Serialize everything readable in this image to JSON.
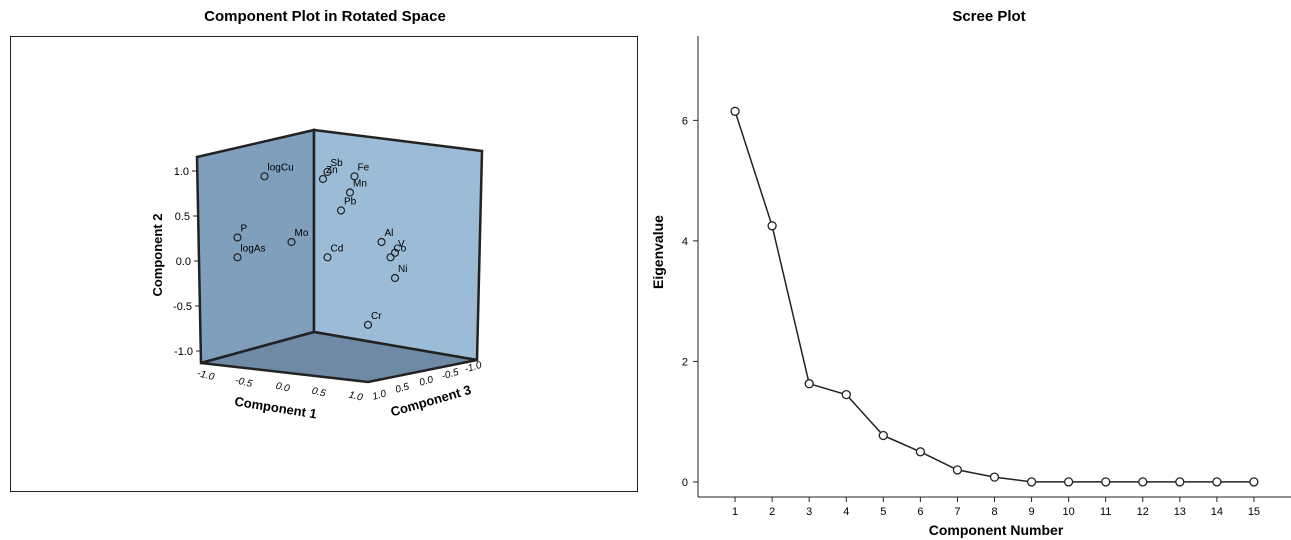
{
  "component_plot": {
    "title": "Component Plot in Rotated Space",
    "x_label": "Component 1",
    "y_label": "Component 2",
    "z_label": "Component 3",
    "x_ticks": [
      "-1.0",
      "-0.5",
      "0.0",
      "0.5",
      "1.0"
    ],
    "y_ticks": [
      "1.0",
      "0.5",
      "0.0",
      "-0.5",
      "-1.0"
    ],
    "z_ticks": [
      "1.0",
      "0.5",
      "0.0",
      "-0.5",
      "-1.0"
    ],
    "wall_color": "#8fb0cc",
    "floor_color": "#6e8aa4"
  },
  "scree_plot": {
    "title": "Scree Plot",
    "x_label": "Component Number",
    "y_label": "Eigenvalue",
    "y_ticks": [
      "0",
      "2",
      "4",
      "6"
    ]
  },
  "chart_data": [
    {
      "type": "scatter",
      "title": "Component Plot in Rotated Space",
      "xlabel": "Component 1",
      "ylabel": "Component 2",
      "zlabel": "Component 3",
      "xlim": [
        -1.0,
        1.0
      ],
      "ylim": [
        -1.0,
        1.0
      ],
      "zlim": [
        -1.0,
        1.0
      ],
      "grid": false,
      "points": [
        {
          "label": "logCu",
          "x": -0.55,
          "y": 0.93,
          "z": 0.55
        },
        {
          "label": "Sb",
          "x": 0.15,
          "y": 0.98,
          "z": 0.35
        },
        {
          "label": "Zn",
          "x": 0.1,
          "y": 0.9,
          "z": 0.45
        },
        {
          "label": "Fe",
          "x": 0.45,
          "y": 0.93,
          "z": 0.55
        },
        {
          "label": "Mn",
          "x": 0.4,
          "y": 0.75,
          "z": 0.5
        },
        {
          "label": "Pb",
          "x": 0.3,
          "y": 0.55,
          "z": 0.5
        },
        {
          "label": "P",
          "x": -0.85,
          "y": 0.25,
          "z": 0.25
        },
        {
          "label": "Mo",
          "x": -0.25,
          "y": 0.2,
          "z": 0.3
        },
        {
          "label": "Cd",
          "x": 0.15,
          "y": 0.03,
          "z": 0.3
        },
        {
          "label": "logAs",
          "x": -0.85,
          "y": 0.03,
          "z": 0.2
        },
        {
          "label": "Al",
          "x": 0.75,
          "y": 0.2,
          "z": 0.35
        },
        {
          "label": "V",
          "x": 0.9,
          "y": 0.08,
          "z": 0.3
        },
        {
          "label": "Co",
          "x": 0.85,
          "y": 0.03,
          "z": 0.3
        },
        {
          "label": "Ni",
          "x": 0.9,
          "y": -0.2,
          "z": 0.3
        },
        {
          "label": "Cr",
          "x": 0.6,
          "y": -0.72,
          "z": 0.2
        }
      ]
    },
    {
      "type": "line",
      "title": "Scree Plot",
      "xlabel": "Component Number",
      "ylabel": "Eigenvalue",
      "x": [
        1,
        2,
        3,
        4,
        5,
        6,
        7,
        8,
        9,
        10,
        11,
        12,
        13,
        14,
        15
      ],
      "y": [
        6.15,
        4.25,
        1.63,
        1.45,
        0.77,
        0.5,
        0.2,
        0.08,
        0.0,
        0.0,
        0.0,
        0.0,
        0.0,
        0.0,
        0.0
      ],
      "xlim": [
        0,
        16
      ],
      "ylim": [
        -0.25,
        7.4
      ],
      "yticks": [
        0,
        2,
        4,
        6
      ],
      "grid": false,
      "markers": "open-circle"
    }
  ]
}
